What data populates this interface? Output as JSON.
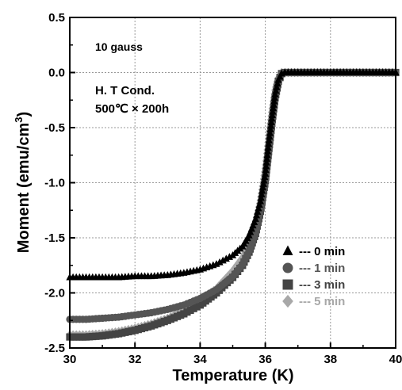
{
  "chart_data": {
    "type": "scatter",
    "xlabel": "Temperature (K)",
    "ylabel_main": "Moment  (emu/cm",
    "ylabel_sup": "3",
    "ylabel_tail": ")",
    "xlim": [
      30,
      40
    ],
    "ylim": [
      -2.5,
      0.5
    ],
    "x_ticks": [
      30,
      32,
      34,
      36,
      38,
      40
    ],
    "y_ticks": [
      0.5,
      0.0,
      -0.5,
      -1.0,
      -1.5,
      -2.0,
      -2.5
    ],
    "y_tick_labels": [
      "0.5",
      "0.0",
      "-0.5",
      "-1.0",
      "-1.5",
      "-2.0",
      "-2.5"
    ],
    "grid": true,
    "legend_position": "bottom-right",
    "annotations": {
      "field": "10 gauss",
      "cond_line1": "H. T Cond.",
      "cond_line2": "500℃ × 200h"
    },
    "series": [
      {
        "name": "--- 0 min",
        "marker": "triangle",
        "color": "#000000",
        "points": [
          [
            30.0,
            -1.86
          ],
          [
            30.5,
            -1.86
          ],
          [
            31.0,
            -1.86
          ],
          [
            31.5,
            -1.86
          ],
          [
            32.0,
            -1.85
          ],
          [
            32.5,
            -1.85
          ],
          [
            33.0,
            -1.84
          ],
          [
            33.5,
            -1.82
          ],
          [
            34.0,
            -1.79
          ],
          [
            34.5,
            -1.74
          ],
          [
            35.0,
            -1.66
          ],
          [
            35.3,
            -1.58
          ],
          [
            35.5,
            -1.48
          ],
          [
            35.7,
            -1.33
          ],
          [
            35.85,
            -1.17
          ],
          [
            36.0,
            -0.92
          ],
          [
            36.1,
            -0.65
          ],
          [
            36.2,
            -0.42
          ],
          [
            36.3,
            -0.2
          ],
          [
            36.4,
            -0.07
          ],
          [
            36.5,
            -0.01
          ],
          [
            36.6,
            0.0
          ],
          [
            37.0,
            0.0
          ],
          [
            37.5,
            0.0
          ],
          [
            38.0,
            0.0
          ],
          [
            38.5,
            0.0
          ],
          [
            39.0,
            0.0
          ],
          [
            39.5,
            0.0
          ],
          [
            40.0,
            0.0
          ]
        ]
      },
      {
        "name": "--- 1 min",
        "marker": "circle",
        "color": "#555555",
        "points": [
          [
            30.0,
            -2.24
          ],
          [
            30.5,
            -2.24
          ],
          [
            31.0,
            -2.23
          ],
          [
            31.5,
            -2.22
          ],
          [
            32.0,
            -2.2
          ],
          [
            32.5,
            -2.18
          ],
          [
            33.0,
            -2.15
          ],
          [
            33.5,
            -2.11
          ],
          [
            34.0,
            -2.05
          ],
          [
            34.5,
            -1.97
          ],
          [
            35.0,
            -1.85
          ],
          [
            35.3,
            -1.74
          ],
          [
            35.5,
            -1.62
          ],
          [
            35.7,
            -1.45
          ],
          [
            35.85,
            -1.25
          ],
          [
            36.0,
            -0.97
          ],
          [
            36.1,
            -0.7
          ],
          [
            36.2,
            -0.45
          ],
          [
            36.3,
            -0.22
          ],
          [
            36.4,
            -0.08
          ],
          [
            36.5,
            -0.01
          ],
          [
            36.6,
            0.0
          ],
          [
            37.0,
            0.0
          ],
          [
            37.5,
            0.0
          ],
          [
            38.0,
            0.0
          ],
          [
            38.5,
            0.0
          ],
          [
            39.0,
            0.0
          ],
          [
            39.5,
            0.0
          ],
          [
            40.0,
            0.0
          ]
        ]
      },
      {
        "name": "--- 3 min",
        "marker": "square",
        "color": "#444444",
        "points": [
          [
            30.0,
            -2.4
          ],
          [
            30.5,
            -2.4
          ],
          [
            31.0,
            -2.39
          ],
          [
            31.5,
            -2.37
          ],
          [
            32.0,
            -2.34
          ],
          [
            32.5,
            -2.3
          ],
          [
            33.0,
            -2.25
          ],
          [
            33.5,
            -2.19
          ],
          [
            34.0,
            -2.11
          ],
          [
            34.5,
            -2.0
          ],
          [
            35.0,
            -1.86
          ],
          [
            35.3,
            -1.75
          ],
          [
            35.5,
            -1.63
          ],
          [
            35.7,
            -1.46
          ],
          [
            35.85,
            -1.26
          ],
          [
            36.0,
            -0.98
          ],
          [
            36.1,
            -0.72
          ],
          [
            36.2,
            -0.46
          ],
          [
            36.3,
            -0.23
          ],
          [
            36.4,
            -0.08
          ],
          [
            36.5,
            -0.01
          ],
          [
            36.6,
            0.0
          ],
          [
            37.0,
            0.0
          ],
          [
            37.5,
            0.0
          ],
          [
            38.0,
            0.0
          ],
          [
            38.5,
            0.0
          ],
          [
            39.0,
            0.0
          ],
          [
            39.5,
            0.0
          ],
          [
            40.0,
            0.0
          ]
        ]
      },
      {
        "name": "--- 5 min",
        "marker": "diamond",
        "color": "#a8a8a8",
        "points": [
          [
            30.0,
            -2.38
          ],
          [
            30.5,
            -2.38
          ],
          [
            31.0,
            -2.37
          ],
          [
            31.5,
            -2.35
          ],
          [
            32.0,
            -2.32
          ],
          [
            32.5,
            -2.28
          ],
          [
            33.0,
            -2.23
          ],
          [
            33.5,
            -2.16
          ],
          [
            34.0,
            -2.07
          ],
          [
            34.5,
            -1.96
          ],
          [
            35.0,
            -1.8
          ],
          [
            35.3,
            -1.68
          ],
          [
            35.5,
            -1.55
          ],
          [
            35.7,
            -1.37
          ],
          [
            35.85,
            -1.16
          ],
          [
            36.0,
            -0.87
          ],
          [
            36.1,
            -0.6
          ],
          [
            36.2,
            -0.36
          ],
          [
            36.3,
            -0.16
          ],
          [
            36.4,
            -0.05
          ],
          [
            36.5,
            0.0
          ],
          [
            36.6,
            0.0
          ],
          [
            37.0,
            0.0
          ],
          [
            37.5,
            0.0
          ],
          [
            38.0,
            0.0
          ],
          [
            38.5,
            0.0
          ],
          [
            39.0,
            0.0
          ],
          [
            39.5,
            0.0
          ],
          [
            40.0,
            0.0
          ]
        ]
      }
    ]
  }
}
